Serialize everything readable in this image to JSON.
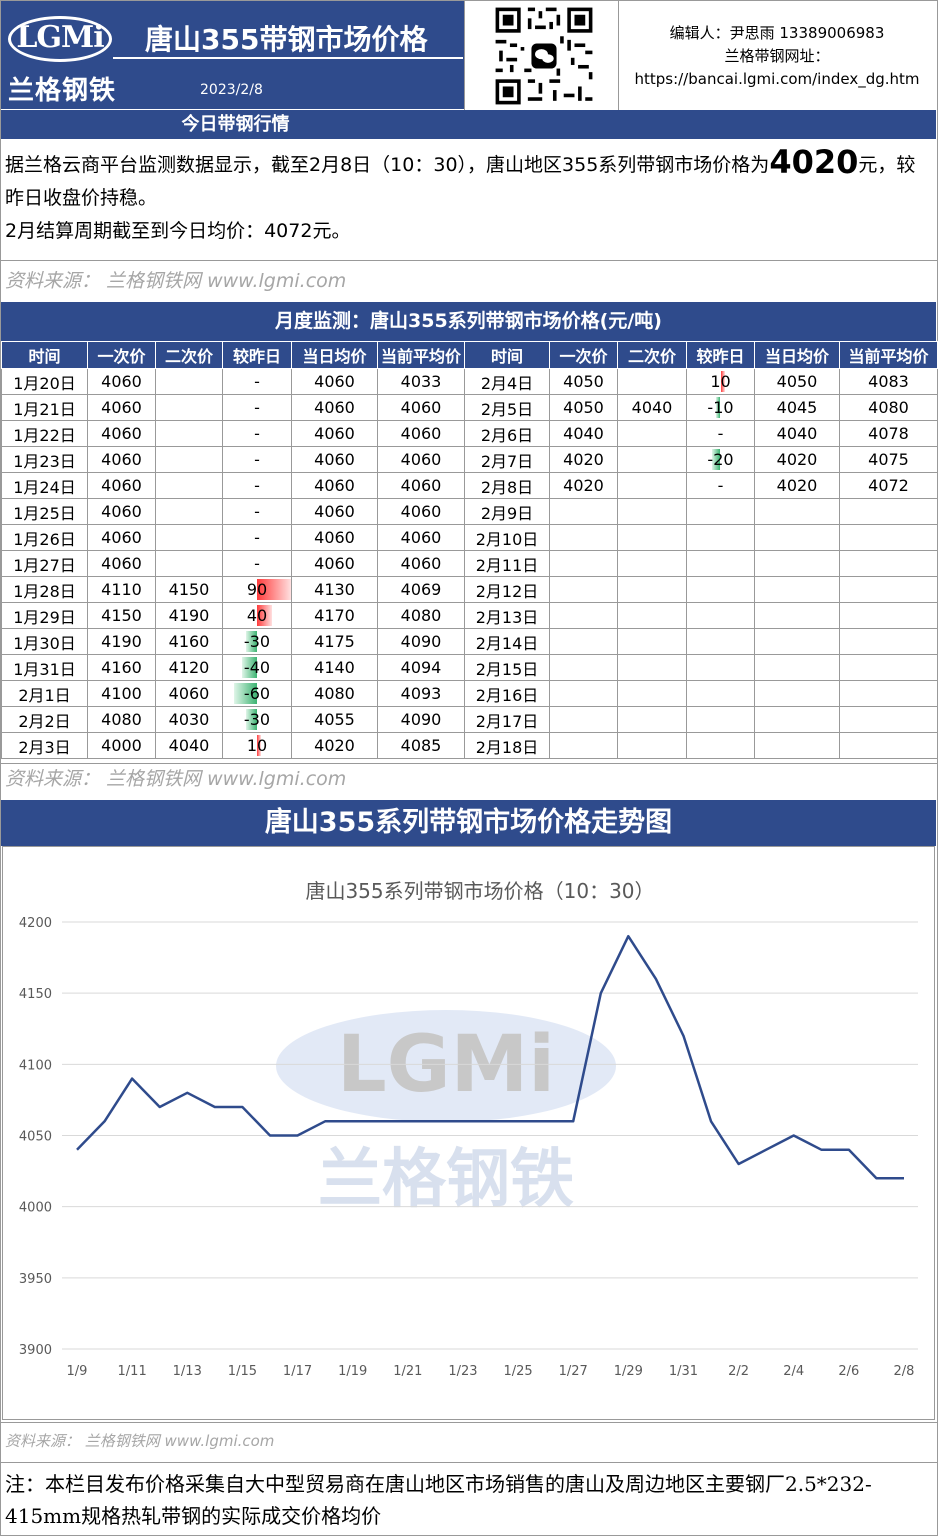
{
  "header": {
    "logo_text": "LGMi",
    "logo_cn": "兰格钢铁",
    "title": "唐山355带钢市场价格",
    "date": "2023/2/8",
    "editor": "编辑人：尹思雨 13389006983",
    "site_label": "兰格带钢网址：",
    "site_url": "https://bancai.lgmi.com/index_dg.htm"
  },
  "today": {
    "band": "今日带钢行情",
    "line1_pre": "据兰格云商平台监测数据显示，截至2月8日（10：30），唐山地区355系列带钢市场价格为",
    "price": "4020",
    "line1_post": "元，较昨日收盘价持稳。",
    "line2": "2月结算周期截至到今日均价：4072元。",
    "source": "资料来源：  兰格钢铁网 www.lgmi.com"
  },
  "monthly": {
    "band": "月度监测：唐山355系列带钢市场价格(元/吨)",
    "headers": [
      "时间",
      "一次价",
      "二次价",
      "较昨日",
      "当日均价",
      "当前平均价",
      "时间",
      "一次价",
      "二次价",
      "较昨日",
      "当日均价",
      "当前平均价"
    ],
    "left_rows": [
      {
        "date": "1月20日",
        "p1": "4060",
        "p2": "",
        "chg": "-",
        "avg": "4060",
        "cur": "4033"
      },
      {
        "date": "1月21日",
        "p1": "4060",
        "p2": "",
        "chg": "-",
        "avg": "4060",
        "cur": "4060"
      },
      {
        "date": "1月22日",
        "p1": "4060",
        "p2": "",
        "chg": "-",
        "avg": "4060",
        "cur": "4060"
      },
      {
        "date": "1月23日",
        "p1": "4060",
        "p2": "",
        "chg": "-",
        "avg": "4060",
        "cur": "4060"
      },
      {
        "date": "1月24日",
        "p1": "4060",
        "p2": "",
        "chg": "-",
        "avg": "4060",
        "cur": "4060"
      },
      {
        "date": "1月25日",
        "p1": "4060",
        "p2": "",
        "chg": "-",
        "avg": "4060",
        "cur": "4060"
      },
      {
        "date": "1月26日",
        "p1": "4060",
        "p2": "",
        "chg": "-",
        "avg": "4060",
        "cur": "4060"
      },
      {
        "date": "1月27日",
        "p1": "4060",
        "p2": "",
        "chg": "-",
        "avg": "4060",
        "cur": "4060"
      },
      {
        "date": "1月28日",
        "p1": "4110",
        "p2": "4150",
        "chg": "90",
        "avg": "4130",
        "cur": "4069"
      },
      {
        "date": "1月29日",
        "p1": "4150",
        "p2": "4190",
        "chg": "40",
        "avg": "4170",
        "cur": "4080"
      },
      {
        "date": "1月30日",
        "p1": "4190",
        "p2": "4160",
        "chg": "-30",
        "avg": "4175",
        "cur": "4090"
      },
      {
        "date": "1月31日",
        "p1": "4160",
        "p2": "4120",
        "chg": "-40",
        "avg": "4140",
        "cur": "4094"
      },
      {
        "date": "2月1日",
        "p1": "4100",
        "p2": "4060",
        "chg": "-60",
        "avg": "4080",
        "cur": "4093"
      },
      {
        "date": "2月2日",
        "p1": "4080",
        "p2": "4030",
        "chg": "-30",
        "avg": "4055",
        "cur": "4090"
      },
      {
        "date": "2月3日",
        "p1": "4000",
        "p2": "4040",
        "chg": "10",
        "avg": "4020",
        "cur": "4085"
      }
    ],
    "right_rows": [
      {
        "date": "2月4日",
        "p1": "4050",
        "p2": "",
        "chg": "10",
        "avg": "4050",
        "cur": "4083"
      },
      {
        "date": "2月5日",
        "p1": "4050",
        "p2": "4040",
        "chg": "-10",
        "avg": "4045",
        "cur": "4080"
      },
      {
        "date": "2月6日",
        "p1": "4040",
        "p2": "",
        "chg": "-",
        "avg": "4040",
        "cur": "4078"
      },
      {
        "date": "2月7日",
        "p1": "4020",
        "p2": "",
        "chg": "-20",
        "avg": "4020",
        "cur": "4075"
      },
      {
        "date": "2月8日",
        "p1": "4020",
        "p2": "",
        "chg": "-",
        "avg": "4020",
        "cur": "4072"
      },
      {
        "date": "2月9日",
        "p1": "",
        "p2": "",
        "chg": "",
        "avg": "",
        "cur": ""
      },
      {
        "date": "2月10日",
        "p1": "",
        "p2": "",
        "chg": "",
        "avg": "",
        "cur": ""
      },
      {
        "date": "2月11日",
        "p1": "",
        "p2": "",
        "chg": "",
        "avg": "",
        "cur": ""
      },
      {
        "date": "2月12日",
        "p1": "",
        "p2": "",
        "chg": "",
        "avg": "",
        "cur": ""
      },
      {
        "date": "2月13日",
        "p1": "",
        "p2": "",
        "chg": "",
        "avg": "",
        "cur": ""
      },
      {
        "date": "2月14日",
        "p1": "",
        "p2": "",
        "chg": "",
        "avg": "",
        "cur": ""
      },
      {
        "date": "2月15日",
        "p1": "",
        "p2": "",
        "chg": "",
        "avg": "",
        "cur": ""
      },
      {
        "date": "2月16日",
        "p1": "",
        "p2": "",
        "chg": "",
        "avg": "",
        "cur": ""
      },
      {
        "date": "2月17日",
        "p1": "",
        "p2": "",
        "chg": "",
        "avg": "",
        "cur": ""
      },
      {
        "date": "2月18日",
        "p1": "",
        "p2": "",
        "chg": "",
        "avg": "",
        "cur": ""
      }
    ],
    "source": "资料来源：  兰格钢铁网 www.lgmi.com"
  },
  "trend": {
    "band": "唐山355系列带钢市场价格走势图",
    "watermark_text": "LGMi",
    "watermark_cn": "兰格钢铁",
    "source": "资料来源：  兰格钢铁网 www.lgmi.com"
  },
  "note": "注：本栏目发布价格采集自大中型贸易商在唐山地区市场销售的唐山及周边地区主要钢厂2.5*232-415mm规格热轧带钢的实际成交价格均价",
  "colors": {
    "brand": "#2f4b8c",
    "line": "#2f4b8c",
    "up": "#ff3b3b",
    "down": "#3cb371"
  },
  "chart_data": {
    "type": "line",
    "title": "唐山355系列带钢市场价格（10：30）",
    "xlabel": "",
    "ylabel": "",
    "x": [
      "1/9",
      "1/10",
      "1/11",
      "1/12",
      "1/13",
      "1/14",
      "1/15",
      "1/16",
      "1/17",
      "1/18",
      "1/19",
      "1/20",
      "1/21",
      "1/22",
      "1/23",
      "1/24",
      "1/25",
      "1/26",
      "1/27",
      "1/28",
      "1/29",
      "1/30",
      "1/31",
      "2/1",
      "2/2",
      "2/3",
      "2/4",
      "2/5",
      "2/6",
      "2/7",
      "2/8"
    ],
    "x_tick_labels": [
      "1/9",
      "1/11",
      "1/13",
      "1/15",
      "1/17",
      "1/19",
      "1/21",
      "1/23",
      "1/25",
      "1/27",
      "1/29",
      "1/31",
      "2/2",
      "2/4",
      "2/6",
      "2/8"
    ],
    "series": [
      {
        "values": [
          4040,
          4060,
          4090,
          4070,
          4080,
          4070,
          4070,
          4050,
          4050,
          4060,
          4060,
          4060,
          4060,
          4060,
          4060,
          4060,
          4060,
          4060,
          4060,
          4150,
          4190,
          4160,
          4120,
          4060,
          4030,
          4040,
          4050,
          4040,
          4040,
          4020,
          4020
        ]
      }
    ],
    "ylim": [
      3900,
      4200
    ],
    "yticks": [
      3900,
      3950,
      4000,
      4050,
      4100,
      4150,
      4200
    ],
    "grid": true
  }
}
